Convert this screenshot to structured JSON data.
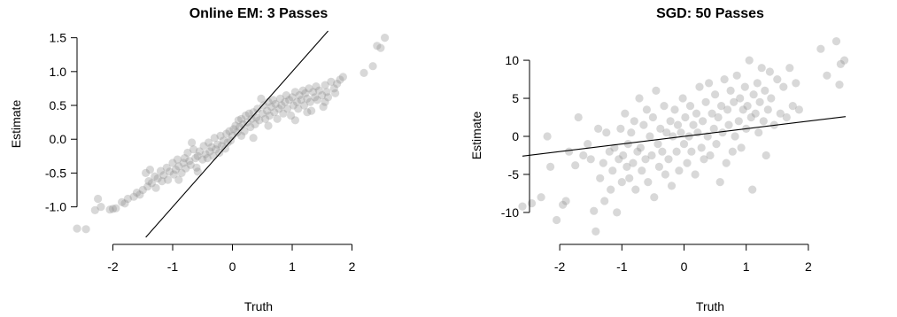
{
  "colors": {
    "points": "#8a8a8a",
    "lines": "#000000",
    "background": "#ffffff"
  },
  "chart_data": [
    {
      "type": "scatter",
      "title": "Online EM: 3 Passes",
      "xlabel": "Truth",
      "ylabel": "Estimate",
      "xlim": [
        -2.6,
        2.6
      ],
      "ylim": [
        -1.45,
        1.6
      ],
      "x_ticks": [
        -2,
        -1,
        0,
        1,
        2
      ],
      "x_tick_labels": [
        "-2",
        "-1",
        "0",
        "1",
        "2"
      ],
      "y_ticks": [
        -1.0,
        -0.5,
        0.0,
        0.5,
        1.0,
        1.5
      ],
      "y_tick_labels": [
        "-1.0",
        "-0.5",
        "0.0",
        "0.5",
        "1.0",
        "1.5"
      ],
      "grid": false,
      "reference_line": {
        "intercept": 0,
        "slope": 1
      },
      "points": [
        [
          -2.6,
          -1.32
        ],
        [
          -2.45,
          -1.33
        ],
        [
          -2.3,
          -1.05
        ],
        [
          -2.25,
          -0.88
        ],
        [
          -2.2,
          -1.0
        ],
        [
          -2.05,
          -1.04
        ],
        [
          -2.0,
          -1.03
        ],
        [
          -1.95,
          -1.02
        ],
        [
          -1.85,
          -0.93
        ],
        [
          -1.8,
          -0.95
        ],
        [
          -1.75,
          -0.88
        ],
        [
          -1.65,
          -0.85
        ],
        [
          -1.6,
          -0.79
        ],
        [
          -1.55,
          -0.82
        ],
        [
          -1.5,
          -0.75
        ],
        [
          -1.45,
          -0.5
        ],
        [
          -1.42,
          -0.7
        ],
        [
          -1.4,
          -0.62
        ],
        [
          -1.35,
          -0.65
        ],
        [
          -1.3,
          -0.55
        ],
        [
          -1.28,
          -0.72
        ],
        [
          -1.25,
          -0.58
        ],
        [
          -1.2,
          -0.47
        ],
        [
          -1.18,
          -0.62
        ],
        [
          -1.15,
          -0.53
        ],
        [
          -1.1,
          -0.42
        ],
        [
          -1.08,
          -0.6
        ],
        [
          -1.05,
          -0.48
        ],
        [
          -1.0,
          -0.35
        ],
        [
          -0.98,
          -0.52
        ],
        [
          -0.95,
          -0.45
        ],
        [
          -0.92,
          -0.3
        ],
        [
          -0.9,
          -0.4
        ],
        [
          -0.85,
          -0.5
        ],
        [
          -0.82,
          -0.35
        ],
        [
          -0.8,
          -0.28
        ],
        [
          -0.78,
          -0.43
        ],
        [
          -0.75,
          -0.2
        ],
        [
          -0.72,
          -0.32
        ],
        [
          -0.7,
          -0.38
        ],
        [
          -0.65,
          -0.15
        ],
        [
          -0.62,
          -0.28
        ],
        [
          -0.6,
          -0.42
        ],
        [
          -0.58,
          -0.25
        ],
        [
          -0.55,
          -0.18
        ],
        [
          -0.5,
          -0.3
        ],
        [
          -0.48,
          -0.1
        ],
        [
          -0.45,
          -0.22
        ],
        [
          -0.42,
          -0.28
        ],
        [
          -0.4,
          -0.05
        ],
        [
          -0.38,
          -0.18
        ],
        [
          -0.35,
          -0.12
        ],
        [
          -0.32,
          -0.25
        ],
        [
          -0.3,
          0.02
        ],
        [
          -0.28,
          -0.15
        ],
        [
          -0.25,
          -0.08
        ],
        [
          -0.22,
          -0.2
        ],
        [
          -0.2,
          0.05
        ],
        [
          -0.18,
          -0.1
        ],
        [
          -0.15,
          -0.02
        ],
        [
          -0.12,
          -0.14
        ],
        [
          -0.1,
          0.08
        ],
        [
          -0.08,
          -0.05
        ],
        [
          -0.05,
          0.12
        ],
        [
          -0.03,
          -0.02
        ],
        [
          0.0,
          0.05
        ],
        [
          0.02,
          0.15
        ],
        [
          0.05,
          0.2
        ],
        [
          0.08,
          0.1
        ],
        [
          0.1,
          0.28
        ],
        [
          0.12,
          0.18
        ],
        [
          0.15,
          0.3
        ],
        [
          0.18,
          0.22
        ],
        [
          0.2,
          0.12
        ],
        [
          0.22,
          0.35
        ],
        [
          0.25,
          0.25
        ],
        [
          0.28,
          0.38
        ],
        [
          0.3,
          0.18
        ],
        [
          0.32,
          0.3
        ],
        [
          0.35,
          0.4
        ],
        [
          0.38,
          0.22
        ],
        [
          0.4,
          0.32
        ],
        [
          0.42,
          0.45
        ],
        [
          0.45,
          0.28
        ],
        [
          0.48,
          0.6
        ],
        [
          0.5,
          0.38
        ],
        [
          0.52,
          0.5
        ],
        [
          0.55,
          0.3
        ],
        [
          0.58,
          0.42
        ],
        [
          0.6,
          0.55
        ],
        [
          0.62,
          0.35
        ],
        [
          0.65,
          0.48
        ],
        [
          0.68,
          0.58
        ],
        [
          0.7,
          0.4
        ],
        [
          0.72,
          0.52
        ],
        [
          0.75,
          0.3
        ],
        [
          0.78,
          0.45
        ],
        [
          0.8,
          0.6
        ],
        [
          0.82,
          0.5
        ],
        [
          0.85,
          0.38
        ],
        [
          0.88,
          0.55
        ],
        [
          0.9,
          0.65
        ],
        [
          0.92,
          0.45
        ],
        [
          0.95,
          0.58
        ],
        [
          0.98,
          0.35
        ],
        [
          1.0,
          0.62
        ],
        [
          1.02,
          0.5
        ],
        [
          1.05,
          0.7
        ],
        [
          1.08,
          0.55
        ],
        [
          1.1,
          0.45
        ],
        [
          1.12,
          0.65
        ],
        [
          1.15,
          0.58
        ],
        [
          1.18,
          0.72
        ],
        [
          1.2,
          0.5
        ],
        [
          1.22,
          0.68
        ],
        [
          1.25,
          0.6
        ],
        [
          1.28,
          0.75
        ],
        [
          1.3,
          0.55
        ],
        [
          1.32,
          0.42
        ],
        [
          1.35,
          0.7
        ],
        [
          1.38,
          0.62
        ],
        [
          1.4,
          0.78
        ],
        [
          1.42,
          0.58
        ],
        [
          1.45,
          0.72
        ],
        [
          1.5,
          0.65
        ],
        [
          1.52,
          0.48
        ],
        [
          1.55,
          0.8
        ],
        [
          1.58,
          0.7
        ],
        [
          1.6,
          0.62
        ],
        [
          1.65,
          0.85
        ],
        [
          1.7,
          0.75
        ],
        [
          1.72,
          0.68
        ],
        [
          1.75,
          0.82
        ],
        [
          1.8,
          0.88
        ],
        [
          1.85,
          0.92
        ],
        [
          2.2,
          0.98
        ],
        [
          2.35,
          1.08
        ],
        [
          2.42,
          1.38
        ],
        [
          2.48,
          1.35
        ],
        [
          2.55,
          1.5
        ],
        [
          -1.38,
          -0.45
        ],
        [
          -0.68,
          -0.05
        ],
        [
          -0.58,
          -0.48
        ],
        [
          0.15,
          0.05
        ],
        [
          0.35,
          0.02
        ],
        [
          0.6,
          0.2
        ],
        [
          1.05,
          0.28
        ],
        [
          1.25,
          0.4
        ],
        [
          1.55,
          0.55
        ],
        [
          -0.9,
          -0.6
        ]
      ]
    },
    {
      "type": "scatter",
      "title": "SGD: 50 Passes",
      "xlabel": "Truth",
      "ylabel": "Estimate",
      "xlim": [
        -2.6,
        2.6
      ],
      "ylim": [
        -13.5,
        13.5
      ],
      "x_ticks": [
        -2,
        -1,
        0,
        1,
        2
      ],
      "x_tick_labels": [
        "-2",
        "-1",
        "0",
        "1",
        "2"
      ],
      "y_ticks": [
        -10,
        -5,
        0,
        5,
        10
      ],
      "y_tick_labels": [
        "-10",
        "-5",
        "0",
        "5",
        "10"
      ],
      "grid": false,
      "reference_line": {
        "intercept": 0,
        "slope": 1
      },
      "points": [
        [
          -2.6,
          -9.2
        ],
        [
          -2.45,
          -8.8
        ],
        [
          -2.3,
          -8.0
        ],
        [
          -2.2,
          0.0
        ],
        [
          -2.15,
          -4.0
        ],
        [
          -2.05,
          -11.0
        ],
        [
          -1.95,
          -9.0
        ],
        [
          -1.9,
          -8.5
        ],
        [
          -1.85,
          -2.0
        ],
        [
          -1.75,
          -3.8
        ],
        [
          -1.7,
          2.5
        ],
        [
          -1.62,
          -2.5
        ],
        [
          -1.55,
          -1.0
        ],
        [
          -1.5,
          -3.0
        ],
        [
          -1.45,
          -9.8
        ],
        [
          -1.42,
          -12.5
        ],
        [
          -1.38,
          1.0
        ],
        [
          -1.35,
          -5.5
        ],
        [
          -1.3,
          -3.5
        ],
        [
          -1.28,
          -8.5
        ],
        [
          -1.25,
          0.5
        ],
        [
          -1.2,
          -2.0
        ],
        [
          -1.18,
          -7.0
        ],
        [
          -1.15,
          -4.5
        ],
        [
          -1.12,
          -1.5
        ],
        [
          -1.08,
          -10.0
        ],
        [
          -1.05,
          -3.0
        ],
        [
          -1.02,
          1.0
        ],
        [
          -1.0,
          -6.0
        ],
        [
          -0.98,
          -2.5
        ],
        [
          -0.95,
          3.0
        ],
        [
          -0.92,
          -4.0
        ],
        [
          -0.9,
          -1.0
        ],
        [
          -0.88,
          -5.5
        ],
        [
          -0.85,
          0.5
        ],
        [
          -0.82,
          -3.5
        ],
        [
          -0.8,
          2.0
        ],
        [
          -0.78,
          -7.0
        ],
        [
          -0.75,
          -2.0
        ],
        [
          -0.72,
          5.0
        ],
        [
          -0.7,
          -1.5
        ],
        [
          -0.68,
          -4.5
        ],
        [
          -0.65,
          1.5
        ],
        [
          -0.62,
          -3.0
        ],
        [
          -0.6,
          3.5
        ],
        [
          -0.58,
          -6.0
        ],
        [
          -0.55,
          0.0
        ],
        [
          -0.52,
          -2.5
        ],
        [
          -0.5,
          2.5
        ],
        [
          -0.48,
          -8.0
        ],
        [
          -0.45,
          6.0
        ],
        [
          -0.42,
          -1.0
        ],
        [
          -0.4,
          -4.0
        ],
        [
          -0.38,
          1.0
        ],
        [
          -0.35,
          -2.0
        ],
        [
          -0.32,
          4.0
        ],
        [
          -0.3,
          -5.0
        ],
        [
          -0.28,
          0.5
        ],
        [
          -0.25,
          -3.0
        ],
        [
          -0.22,
          2.0
        ],
        [
          -0.2,
          -6.5
        ],
        [
          -0.18,
          0.0
        ],
        [
          -0.15,
          3.5
        ],
        [
          -0.12,
          -2.0
        ],
        [
          -0.1,
          1.5
        ],
        [
          -0.08,
          -4.5
        ],
        [
          -0.05,
          0.5
        ],
        [
          -0.02,
          5.0
        ],
        [
          0.0,
          -1.0
        ],
        [
          0.02,
          2.5
        ],
        [
          0.05,
          -3.5
        ],
        [
          0.08,
          0.0
        ],
        [
          0.1,
          4.0
        ],
        [
          0.12,
          -2.0
        ],
        [
          0.15,
          1.5
        ],
        [
          0.18,
          -5.0
        ],
        [
          0.2,
          3.0
        ],
        [
          0.22,
          0.5
        ],
        [
          0.25,
          6.5
        ],
        [
          0.28,
          -1.5
        ],
        [
          0.3,
          2.0
        ],
        [
          0.32,
          -3.0
        ],
        [
          0.35,
          4.5
        ],
        [
          0.38,
          0.0
        ],
        [
          0.4,
          7.0
        ],
        [
          0.42,
          -2.5
        ],
        [
          0.45,
          3.0
        ],
        [
          0.48,
          1.0
        ],
        [
          0.5,
          5.5
        ],
        [
          0.52,
          -1.0
        ],
        [
          0.55,
          2.5
        ],
        [
          0.58,
          -6.0
        ],
        [
          0.6,
          4.0
        ],
        [
          0.62,
          0.5
        ],
        [
          0.65,
          7.5
        ],
        [
          0.68,
          -3.5
        ],
        [
          0.7,
          3.5
        ],
        [
          0.72,
          1.5
        ],
        [
          0.75,
          6.0
        ],
        [
          0.78,
          -2.0
        ],
        [
          0.8,
          4.5
        ],
        [
          0.82,
          0.0
        ],
        [
          0.85,
          8.0
        ],
        [
          0.88,
          2.0
        ],
        [
          0.9,
          5.0
        ],
        [
          0.92,
          -1.5
        ],
        [
          0.95,
          3.5
        ],
        [
          0.98,
          6.5
        ],
        [
          1.0,
          1.0
        ],
        [
          1.02,
          4.0
        ],
        [
          1.05,
          10.0
        ],
        [
          1.08,
          2.5
        ],
        [
          1.1,
          -7.0
        ],
        [
          1.12,
          5.5
        ],
        [
          1.15,
          3.0
        ],
        [
          1.18,
          7.0
        ],
        [
          1.2,
          0.5
        ],
        [
          1.22,
          4.5
        ],
        [
          1.25,
          9.0
        ],
        [
          1.28,
          2.0
        ],
        [
          1.3,
          6.0
        ],
        [
          1.32,
          -2.5
        ],
        [
          1.35,
          3.5
        ],
        [
          1.38,
          8.5
        ],
        [
          1.4,
          5.0
        ],
        [
          1.45,
          1.5
        ],
        [
          1.5,
          7.5
        ],
        [
          1.55,
          3.0
        ],
        [
          1.6,
          6.5
        ],
        [
          1.65,
          2.5
        ],
        [
          1.7,
          9.0
        ],
        [
          1.75,
          4.0
        ],
        [
          1.8,
          7.0
        ],
        [
          1.85,
          3.5
        ],
        [
          2.2,
          11.5
        ],
        [
          2.3,
          8.0
        ],
        [
          2.45,
          12.5
        ],
        [
          2.52,
          9.5
        ],
        [
          2.58,
          10.0
        ],
        [
          2.5,
          6.8
        ]
      ]
    }
  ]
}
